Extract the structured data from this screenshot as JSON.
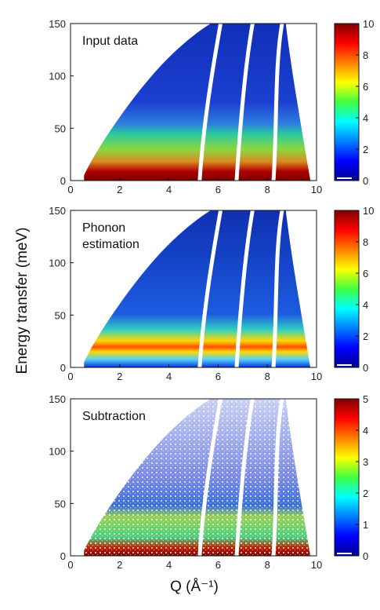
{
  "figure": {
    "ylabel": "Energy transfer (meV)",
    "xlabel": "Q (Å⁻¹)"
  },
  "chart_data": [
    {
      "type": "heatmap",
      "title": "Input data",
      "xlim": [
        0,
        10
      ],
      "ylim": [
        0,
        150
      ],
      "xticks": [
        0,
        2,
        4,
        6,
        8,
        10
      ],
      "yticks": [
        0,
        50,
        100,
        150
      ],
      "colorbar": {
        "range": [
          0,
          10
        ],
        "ticks": [
          0,
          2,
          4,
          6,
          8,
          10
        ],
        "colormap": "jet"
      },
      "grid": false
    },
    {
      "type": "heatmap",
      "title": "Phonon estimation",
      "xlim": [
        0,
        10
      ],
      "ylim": [
        0,
        150
      ],
      "xticks": [
        0,
        2,
        4,
        6,
        8,
        10
      ],
      "yticks": [
        0,
        50,
        100,
        150
      ],
      "colorbar": {
        "range": [
          0,
          10
        ],
        "ticks": [
          0,
          2,
          4,
          6,
          8,
          10
        ],
        "colormap": "jet"
      },
      "grid": false
    },
    {
      "type": "heatmap",
      "title": "Subtraction",
      "xlim": [
        0,
        10
      ],
      "ylim": [
        0,
        150
      ],
      "xticks": [
        0,
        2,
        4,
        6,
        8,
        10
      ],
      "yticks": [
        0,
        50,
        100,
        150
      ],
      "colorbar": {
        "range": [
          0,
          5
        ],
        "ticks": [
          0,
          1,
          2,
          3,
          4,
          5
        ],
        "colormap": "jet"
      },
      "grid": false
    }
  ]
}
